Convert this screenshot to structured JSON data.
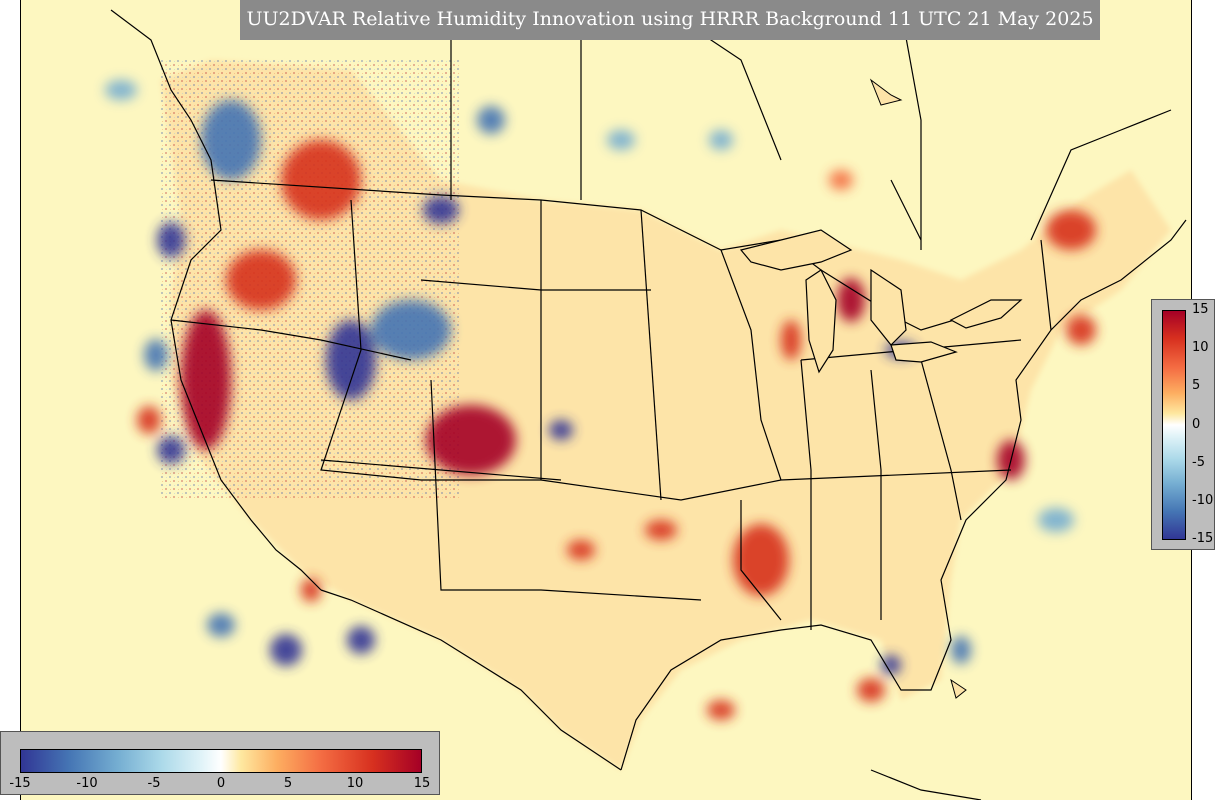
{
  "title": "UU2DVAR Relative Humidity Innovation using HRRR Background 11 UTC 21 May 2025",
  "colorbar": {
    "ticks_vertical": [
      "15",
      "10",
      "5",
      "0",
      "-5",
      "-10",
      "-15"
    ],
    "ticks_horizontal": [
      "-15",
      "-10",
      "-5",
      "0",
      "5",
      "10",
      "15"
    ],
    "colors": [
      "#313695",
      "#4575b4",
      "#74add1",
      "#abd9e9",
      "#e0f3f8",
      "#ffffff",
      "#fee8a0",
      "#fdae61",
      "#f46d43",
      "#d7301f",
      "#a50026"
    ]
  },
  "map": {
    "background_color": "#fdf7c0",
    "region": "Continental United States",
    "boundaries": "state and country borders, coastlines"
  }
}
